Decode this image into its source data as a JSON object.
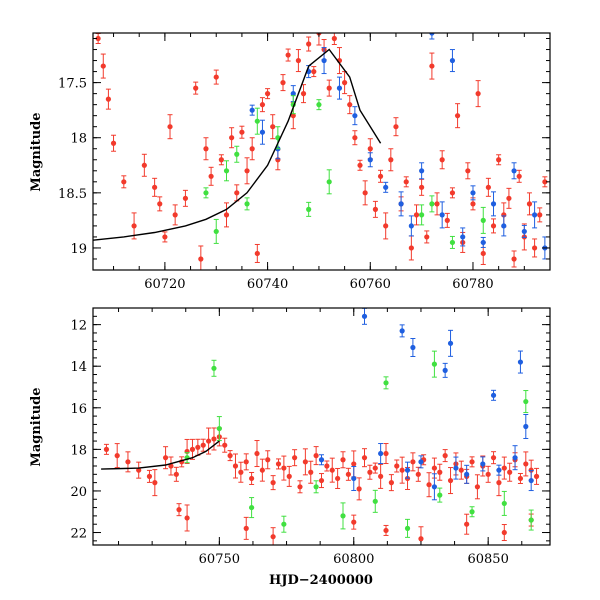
{
  "colors": {
    "red": "#f23a2c",
    "blue": "#1f5fe0",
    "green": "#40e040",
    "curve": "#000000"
  },
  "chart_data": [
    {
      "type": "scatter",
      "panel": "top",
      "title": "",
      "xlabel": "",
      "ylabel": "Magnitude",
      "xlim": [
        60706,
        60795
      ],
      "ylim": [
        19.2,
        17.05
      ],
      "inverted_y": true,
      "xticks": [
        60720,
        60740,
        60760,
        60780
      ],
      "yticks": [
        17.5,
        18,
        18.5,
        19
      ],
      "ytick_labels": [
        "17.5",
        "18",
        "18.5",
        "19"
      ],
      "model_curve": {
        "x": [
          60706,
          60712,
          60718,
          60724,
          60728,
          60732,
          60736,
          60740,
          60744,
          60748,
          60752,
          60756,
          60758,
          60762
        ],
        "y": [
          18.93,
          18.9,
          18.86,
          18.8,
          18.74,
          18.65,
          18.5,
          18.25,
          17.85,
          17.35,
          17.2,
          17.45,
          17.75,
          18.05
        ]
      },
      "series": [
        {
          "color": "red",
          "x": [
            60707,
            60708,
            60709,
            60710,
            60712,
            60714,
            60716,
            60718,
            60719,
            60720,
            60721,
            60722,
            60724,
            60726,
            60727,
            60728,
            60729,
            60730,
            60731,
            60732,
            60733,
            60734,
            60735,
            60736,
            60737,
            60738,
            60739,
            60740,
            60741,
            60742,
            60743,
            60744,
            60745,
            60746,
            60747,
            60748,
            60749,
            60750,
            60751,
            60752,
            60753,
            60754,
            60755,
            60756,
            60757,
            60758,
            60759,
            60760,
            60761,
            60762,
            60763,
            60764,
            60765,
            60766,
            60767,
            60768,
            60769,
            60770,
            60771,
            60772,
            60773,
            60774,
            60775,
            60776,
            60777,
            60778,
            60779,
            60780,
            60781,
            60782,
            60783,
            60784,
            60785,
            60786,
            60787,
            60788,
            60789,
            60790,
            60791,
            60792,
            60793,
            60794
          ],
          "y": [
            17.1,
            17.35,
            17.65,
            18.05,
            18.4,
            18.8,
            18.25,
            18.45,
            18.6,
            18.9,
            17.9,
            18.7,
            18.55,
            17.55,
            19.1,
            18.1,
            18.35,
            17.45,
            18.2,
            18.7,
            18.0,
            18.5,
            17.95,
            18.3,
            18.1,
            19.05,
            17.7,
            17.6,
            17.9,
            18.2,
            17.5,
            17.25,
            17.8,
            17.3,
            17.6,
            17.15,
            17.4,
            17.05,
            17.2,
            17.55,
            17.1,
            17.3,
            17.5,
            17.7,
            18.0,
            18.25,
            18.5,
            18.1,
            18.65,
            18.35,
            18.8,
            18.2,
            17.9,
            18.6,
            18.4,
            19.0,
            18.7,
            18.45,
            18.9,
            17.35,
            18.6,
            18.2,
            18.75,
            18.5,
            17.8,
            18.95,
            18.3,
            18.6,
            17.6,
            19.05,
            18.45,
            18.8,
            18.2,
            18.7,
            18.55,
            19.1,
            18.35,
            18.9,
            18.6,
            19.0,
            18.7,
            18.4
          ]
        },
        {
          "color": "blue",
          "x": [
            60737,
            60739,
            60742,
            60745,
            60748,
            60751,
            60754,
            60757,
            60760,
            60763,
            60766,
            60768,
            60770,
            60772,
            60774,
            60776,
            60778,
            60780,
            60782,
            60784,
            60786,
            60788,
            60790,
            60792,
            60794
          ],
          "y": [
            17.75,
            17.95,
            18.1,
            17.6,
            17.4,
            17.3,
            17.55,
            17.8,
            18.2,
            18.45,
            18.6,
            18.8,
            18.3,
            17.05,
            18.7,
            17.3,
            18.9,
            18.5,
            18.95,
            18.6,
            18.8,
            18.3,
            18.85,
            18.7,
            19.0
          ]
        },
        {
          "color": "green",
          "x": [
            60728,
            60730,
            60732,
            60734,
            60736,
            60738,
            60742,
            60745,
            60748,
            60750,
            60752,
            60770,
            60772,
            60776,
            60782
          ],
          "y": [
            18.5,
            18.85,
            18.3,
            18.15,
            18.6,
            17.85,
            18.0,
            17.7,
            18.65,
            17.7,
            18.4,
            18.7,
            18.6,
            18.95,
            18.75
          ]
        }
      ]
    },
    {
      "type": "scatter",
      "panel": "bottom",
      "title": "",
      "xlabel": "HJD−2400000",
      "ylabel": "Magnitude",
      "xlim": [
        60703,
        60873
      ],
      "ylim": [
        22.6,
        11.2
      ],
      "inverted_y": true,
      "xticks": [
        60750,
        60800,
        60850
      ],
      "yticks": [
        12,
        14,
        16,
        18,
        20,
        22
      ],
      "ytick_labels": [
        "12",
        "14",
        "16",
        "18",
        "20",
        "22"
      ],
      "model_curve": {
        "x": [
          60706,
          60720,
          60730,
          60740,
          60745,
          60750
        ],
        "y": [
          18.95,
          18.9,
          18.75,
          18.4,
          18.1,
          17.6
        ]
      },
      "series": [
        {
          "color": "red",
          "x": [
            60708,
            60712,
            60716,
            60720,
            60724,
            60726,
            60730,
            60732,
            60734,
            60736,
            60738,
            60740,
            60742,
            60744,
            60746,
            60748,
            60750,
            60752,
            60754,
            60756,
            60758,
            60760,
            60762,
            60764,
            60766,
            60768,
            60770,
            60772,
            60774,
            60776,
            60778,
            60780,
            60782,
            60784,
            60786,
            60788,
            60790,
            60792,
            60794,
            60796,
            60798,
            60800,
            60802,
            60804,
            60806,
            60808,
            60810,
            60812,
            60814,
            60816,
            60818,
            60820,
            60822,
            60824,
            60826,
            60828,
            60830,
            60832,
            60834,
            60836,
            60838,
            60840,
            60842,
            60844,
            60846,
            60848,
            60850,
            60852,
            60854,
            60856,
            60858,
            60860,
            60862,
            60864,
            60866,
            60868,
            60735,
            60738,
            60760,
            60770,
            60800,
            60812,
            60825,
            60842,
            60856,
            60866
          ],
          "y": [
            18.0,
            18.3,
            18.6,
            19.0,
            19.3,
            19.6,
            18.4,
            18.8,
            19.2,
            18.6,
            18.1,
            18.0,
            17.9,
            17.8,
            17.6,
            17.5,
            17.4,
            17.8,
            18.3,
            18.8,
            19.1,
            18.6,
            19.4,
            18.2,
            19.0,
            18.5,
            19.6,
            18.7,
            18.9,
            19.3,
            18.4,
            19.8,
            18.6,
            19.1,
            18.3,
            19.5,
            18.8,
            19.0,
            19.4,
            18.5,
            19.2,
            18.7,
            19.9,
            18.4,
            19.1,
            18.9,
            19.3,
            18.2,
            19.6,
            18.8,
            19.0,
            19.4,
            18.6,
            19.2,
            18.5,
            19.7,
            18.9,
            19.1,
            18.3,
            19.5,
            18.7,
            19.0,
            19.3,
            18.6,
            19.8,
            18.8,
            19.2,
            18.4,
            19.6,
            18.9,
            19.1,
            18.5,
            19.4,
            18.7,
            19.0,
            19.3,
            20.9,
            21.3,
            21.8,
            22.2,
            21.5,
            21.9,
            22.3,
            21.6,
            22.0,
            21.4
          ]
        },
        {
          "color": "blue",
          "x": [
            60788,
            60800,
            60810,
            60820,
            60825,
            60830,
            60838,
            60842,
            60848,
            60854,
            60860,
            60866,
            60804,
            60818,
            60836,
            60862,
            60822,
            60834,
            60852,
            60864
          ],
          "y": [
            18.5,
            19.4,
            18.2,
            19.0,
            18.6,
            19.8,
            18.9,
            19.2,
            18.7,
            19.0,
            18.4,
            19.5,
            11.6,
            12.3,
            12.9,
            13.8,
            13.1,
            14.2,
            15.4,
            16.9
          ]
        },
        {
          "color": "green",
          "x": [
            60738,
            60750,
            60762,
            60774,
            60786,
            60796,
            60808,
            60820,
            60832,
            60844,
            60856,
            60866,
            60748,
            60812,
            60830,
            60864
          ],
          "y": [
            18.4,
            17.0,
            20.8,
            21.6,
            19.8,
            21.2,
            20.5,
            21.8,
            20.2,
            21.0,
            20.6,
            21.4,
            14.1,
            14.8,
            13.9,
            15.7
          ]
        }
      ]
    }
  ]
}
